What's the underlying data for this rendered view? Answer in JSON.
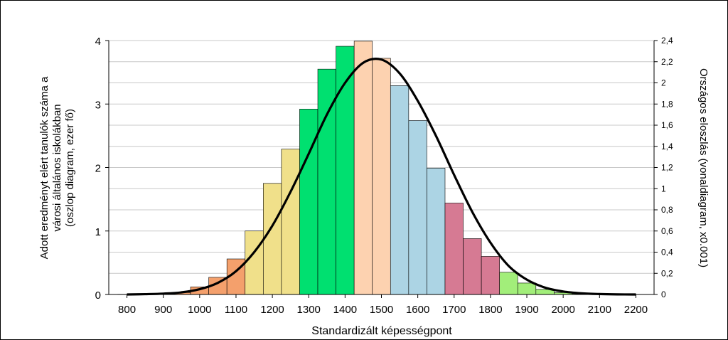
{
  "chart_data": {
    "type": "bar",
    "xlabel": "Standardizált képességpont",
    "ylabel_lines": [
      "Adott eredményt elért tanulók száma a",
      "városi általános iskolákban",
      "(oszlop diagram, ezer fő)"
    ],
    "y2label": "Országos eloszlás (vonaldiagram, x0.001)",
    "x_ticks": [
      "800",
      "900",
      "1000",
      "1100",
      "1200",
      "1300",
      "1400",
      "1500",
      "1600",
      "1700",
      "1800",
      "1900",
      "2000",
      "2100",
      "2200"
    ],
    "y_ticks": [
      "0",
      "1",
      "2",
      "3",
      "4"
    ],
    "y2_ticks": [
      "0",
      "0,2",
      "0,4",
      "0,6",
      "0,8",
      "1",
      "1,2",
      "1,4",
      "1,6",
      "1,8",
      "2",
      "2,2",
      "2,4"
    ],
    "xlim": [
      750,
      2250
    ],
    "ylim": [
      0,
      4
    ],
    "y2lim": [
      0,
      2.4
    ],
    "grid": "horizontal",
    "bin_width": 50,
    "bars": [
      {
        "x": 800,
        "value": 0.003,
        "color": "#f4a06c"
      },
      {
        "x": 850,
        "value": 0.008,
        "color": "#f4a06c"
      },
      {
        "x": 900,
        "value": 0.015,
        "color": "#f4a06c"
      },
      {
        "x": 950,
        "value": 0.03,
        "color": "#f4a06c"
      },
      {
        "x": 1000,
        "value": 0.12,
        "color": "#f4a06c"
      },
      {
        "x": 1050,
        "value": 0.27,
        "color": "#f4a06c"
      },
      {
        "x": 1100,
        "value": 0.56,
        "color": "#f4a06c"
      },
      {
        "x": 1150,
        "value": 1.0,
        "color": "#f0e08a"
      },
      {
        "x": 1200,
        "value": 1.75,
        "color": "#f0e08a"
      },
      {
        "x": 1250,
        "value": 2.29,
        "color": "#f0e08a"
      },
      {
        "x": 1300,
        "value": 2.92,
        "color": "#00e070"
      },
      {
        "x": 1350,
        "value": 3.55,
        "color": "#00e070"
      },
      {
        "x": 1400,
        "value": 3.91,
        "color": "#00e070"
      },
      {
        "x": 1450,
        "value": 3.99,
        "color": "#fdd2b0"
      },
      {
        "x": 1500,
        "value": 3.72,
        "color": "#fdd2b0"
      },
      {
        "x": 1550,
        "value": 3.29,
        "color": "#acd4e4"
      },
      {
        "x": 1600,
        "value": 2.74,
        "color": "#acd4e4"
      },
      {
        "x": 1650,
        "value": 1.99,
        "color": "#acd4e4"
      },
      {
        "x": 1700,
        "value": 1.44,
        "color": "#d67a93"
      },
      {
        "x": 1750,
        "value": 0.88,
        "color": "#d67a93"
      },
      {
        "x": 1800,
        "value": 0.6,
        "color": "#d67a93"
      },
      {
        "x": 1850,
        "value": 0.35,
        "color": "#a2ee7a"
      },
      {
        "x": 1900,
        "value": 0.18,
        "color": "#a2ee7a"
      },
      {
        "x": 1950,
        "value": 0.08,
        "color": "#a2ee7a"
      },
      {
        "x": 2000,
        "value": 0.03,
        "color": "#a2ee7a"
      },
      {
        "x": 2050,
        "value": 0.012,
        "color": "#a2ee7a"
      },
      {
        "x": 2100,
        "value": 0.005,
        "color": "#a2ee7a"
      },
      {
        "x": 2150,
        "value": 0.002,
        "color": "#a2ee7a"
      }
    ],
    "curve": {
      "type": "line",
      "axis": "y2",
      "color": "#000000",
      "x": [
        800,
        850,
        900,
        950,
        1000,
        1050,
        1100,
        1150,
        1200,
        1250,
        1300,
        1350,
        1400,
        1450,
        1500,
        1550,
        1600,
        1650,
        1700,
        1750,
        1800,
        1850,
        1900,
        1950,
        2000,
        2050,
        2100,
        2150,
        2200
      ],
      "y": [
        0.0,
        0.003,
        0.008,
        0.02,
        0.05,
        0.11,
        0.22,
        0.4,
        0.65,
        0.97,
        1.33,
        1.7,
        2.0,
        2.19,
        2.22,
        2.09,
        1.83,
        1.5,
        1.13,
        0.78,
        0.49,
        0.27,
        0.14,
        0.065,
        0.028,
        0.011,
        0.004,
        0.001,
        0.0
      ]
    }
  }
}
